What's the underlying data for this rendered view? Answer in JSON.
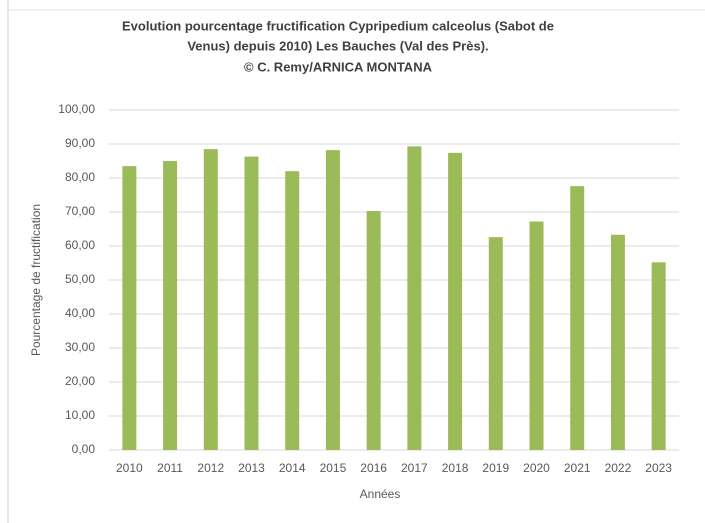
{
  "chart_data": {
    "type": "bar",
    "title": [
      "Evolution pourcentage fructification Cypripedium calceolus (Sabot de",
      "Venus) depuis 2010) Les Bauches (Val des Près).",
      "© C. Remy/ARNICA MONTANA"
    ],
    "xlabel": "Années",
    "ylabel": "Pourcentage de fructification",
    "categories": [
      "2010",
      "2011",
      "2012",
      "2013",
      "2014",
      "2015",
      "2016",
      "2017",
      "2018",
      "2019",
      "2020",
      "2021",
      "2022",
      "2023"
    ],
    "values": [
      83.5,
      85,
      88.5,
      86.3,
      82,
      88.2,
      70.3,
      89.3,
      87.4,
      62.6,
      67.2,
      77.6,
      63.3,
      55.2
    ],
    "color": "#9bbb59",
    "ylim": [
      0,
      100
    ],
    "yticks": [
      {
        "value": 0,
        "label": "0,00"
      },
      {
        "value": 10,
        "label": "10,00"
      },
      {
        "value": 20,
        "label": "20,00"
      },
      {
        "value": 30,
        "label": "30,00"
      },
      {
        "value": 40,
        "label": "40,00"
      },
      {
        "value": 50,
        "label": "50,00"
      },
      {
        "value": 60,
        "label": "60,00"
      },
      {
        "value": 70,
        "label": "70,00"
      },
      {
        "value": 80,
        "label": "80,00"
      },
      {
        "value": 90,
        "label": "90,00"
      },
      {
        "value": 100,
        "label": "100,00"
      }
    ],
    "grid": true
  }
}
